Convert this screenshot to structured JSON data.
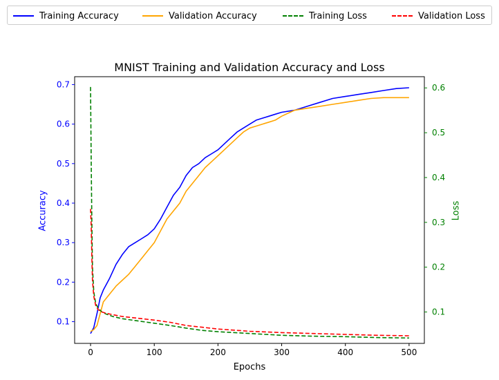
{
  "chart_data": {
    "type": "line",
    "title": "MNIST Training and Validation Accuracy and Loss",
    "xlabel": "Epochs",
    "ylabel_left": "Accuracy",
    "ylabel_right": "Loss",
    "ylabel_left_color": "#0000ff",
    "ylabel_right_color": "#008000",
    "xlim": [
      -25,
      524
    ],
    "ylim_left": [
      0.045,
      0.72
    ],
    "ylim_right": [
      0.03,
      0.625
    ],
    "x_ticks": [
      0,
      100,
      200,
      300,
      400,
      500
    ],
    "y_left_ticks": [
      0.1,
      0.2,
      0.3,
      0.4,
      0.5,
      0.6,
      0.7
    ],
    "y_right_ticks": [
      0.1,
      0.2,
      0.3,
      0.4,
      0.5,
      0.6
    ],
    "grid": false,
    "legend_placement": "top, above plot",
    "series": [
      {
        "name": "Training Accuracy",
        "axis": "left",
        "color": "#0000ff",
        "dash": "solid",
        "x": [
          0,
          5,
          10,
          15,
          20,
          30,
          40,
          50,
          60,
          70,
          80,
          90,
          100,
          110,
          120,
          130,
          140,
          150,
          160,
          170,
          180,
          190,
          200,
          210,
          220,
          230,
          240,
          250,
          260,
          270,
          280,
          290,
          300,
          320,
          340,
          360,
          380,
          400,
          420,
          440,
          460,
          480,
          500
        ],
        "y": [
          0.07,
          0.085,
          0.12,
          0.16,
          0.18,
          0.21,
          0.245,
          0.27,
          0.29,
          0.3,
          0.31,
          0.32,
          0.335,
          0.36,
          0.39,
          0.42,
          0.44,
          0.47,
          0.49,
          0.5,
          0.515,
          0.525,
          0.535,
          0.55,
          0.565,
          0.58,
          0.59,
          0.6,
          0.61,
          0.615,
          0.62,
          0.625,
          0.63,
          0.635,
          0.645,
          0.655,
          0.665,
          0.67,
          0.675,
          0.68,
          0.685,
          0.69,
          0.692
        ]
      },
      {
        "name": "Validation Accuracy",
        "axis": "left",
        "color": "#ffa500",
        "dash": "solid",
        "x": [
          0,
          5,
          10,
          15,
          20,
          30,
          40,
          50,
          60,
          70,
          80,
          90,
          100,
          110,
          120,
          130,
          140,
          150,
          160,
          170,
          180,
          190,
          200,
          210,
          220,
          230,
          240,
          250,
          260,
          270,
          280,
          290,
          300,
          320,
          340,
          360,
          380,
          400,
          420,
          440,
          460,
          480,
          500
        ],
        "y": [
          0.075,
          0.08,
          0.09,
          0.12,
          0.15,
          0.17,
          0.19,
          0.205,
          0.22,
          0.24,
          0.26,
          0.28,
          0.3,
          0.33,
          0.36,
          0.38,
          0.4,
          0.43,
          0.45,
          0.47,
          0.49,
          0.505,
          0.52,
          0.535,
          0.55,
          0.565,
          0.58,
          0.59,
          0.595,
          0.6,
          0.605,
          0.61,
          0.62,
          0.635,
          0.64,
          0.645,
          0.65,
          0.655,
          0.66,
          0.665,
          0.667,
          0.667,
          0.667
        ]
      },
      {
        "name": "Training Loss",
        "axis": "right",
        "color": "#008000",
        "dash": "dashed",
        "x": [
          0,
          1,
          2,
          3,
          5,
          8,
          12,
          18,
          25,
          35,
          50,
          75,
          100,
          125,
          150,
          175,
          200,
          250,
          300,
          350,
          400,
          450,
          500
        ],
        "y": [
          0.602,
          0.43,
          0.3,
          0.2,
          0.145,
          0.12,
          0.108,
          0.1,
          0.095,
          0.09,
          0.085,
          0.08,
          0.075,
          0.07,
          0.064,
          0.059,
          0.056,
          0.052,
          0.048,
          0.046,
          0.045,
          0.043,
          0.042
        ]
      },
      {
        "name": "Validation Loss",
        "axis": "right",
        "color": "#ff0000",
        "dash": "dashed",
        "x": [
          0,
          1,
          2,
          3,
          5,
          8,
          12,
          18,
          25,
          35,
          50,
          75,
          100,
          125,
          150,
          175,
          200,
          250,
          300,
          350,
          400,
          450,
          500
        ],
        "y": [
          0.33,
          0.29,
          0.22,
          0.17,
          0.135,
          0.115,
          0.105,
          0.1,
          0.097,
          0.094,
          0.09,
          0.086,
          0.082,
          0.077,
          0.07,
          0.066,
          0.062,
          0.057,
          0.054,
          0.052,
          0.05,
          0.048,
          0.047
        ]
      }
    ]
  }
}
